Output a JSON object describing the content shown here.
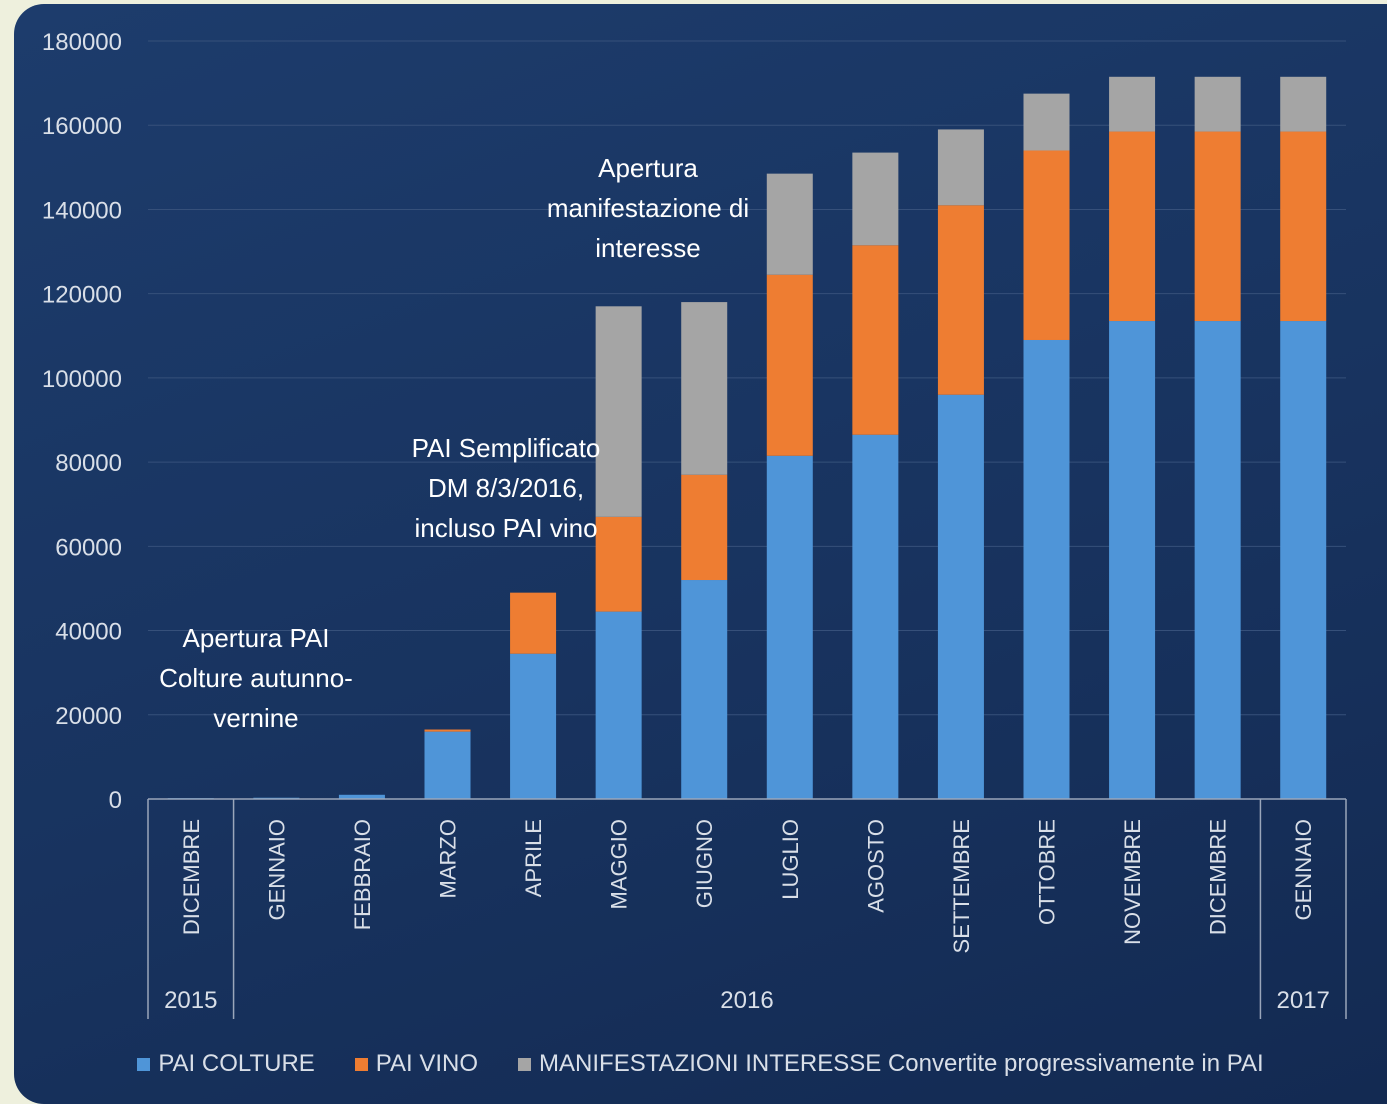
{
  "colors": {
    "pai_colture": "#4f95d8",
    "pai_vino": "#ee7d32",
    "manifestazioni": "#a5a5a5",
    "grid": "#36507a",
    "tick_text": "#d9dfe8"
  },
  "chart_data": {
    "type": "bar",
    "stacked": true,
    "categories": [
      "DICEMBRE",
      "GENNAIO",
      "FEBBRAIO",
      "MARZO",
      "APRILE",
      "MAGGIO",
      "GIUGNO",
      "LUGLIO",
      "AGOSTO",
      "SETTEMBRE",
      "OTTOBRE",
      "NOVEMBRE",
      "DICEMBRE",
      "GENNAIO"
    ],
    "year_groups": [
      {
        "label": "2015",
        "span": 1
      },
      {
        "label": "2016",
        "span": 12
      },
      {
        "label": "2017",
        "span": 1
      }
    ],
    "series": [
      {
        "name": "PAI COLTURE",
        "values": [
          200,
          300,
          1000,
          16000,
          34500,
          44500,
          52000,
          81500,
          86500,
          96000,
          109000,
          113500,
          113500,
          113500
        ]
      },
      {
        "name": "PAI VINO",
        "values": [
          0,
          0,
          0,
          500,
          14500,
          22500,
          25000,
          43000,
          45000,
          45000,
          45000,
          45000,
          45000,
          45000
        ]
      },
      {
        "name": "MANIFESTAZIONI INTERESSE Convertite progressivamente in PAI",
        "values": [
          0,
          0,
          0,
          0,
          0,
          50000,
          41000,
          24000,
          22000,
          18000,
          13500,
          13000,
          13000,
          13000
        ]
      }
    ],
    "ylim": [
      0,
      180000
    ],
    "yticks": [
      0,
      20000,
      40000,
      60000,
      80000,
      100000,
      120000,
      140000,
      160000,
      180000
    ],
    "grid": true,
    "legend_position": "bottom",
    "annotations": [
      {
        "lines": [
          "Apertura PAI",
          "Colture autunno-",
          "vernine"
        ]
      },
      {
        "lines": [
          "PAI Semplificato",
          "DM 8/3/2016,",
          "incluso PAI vino"
        ]
      },
      {
        "lines": [
          "Apertura",
          "manifestazione di",
          "interesse"
        ]
      }
    ]
  }
}
